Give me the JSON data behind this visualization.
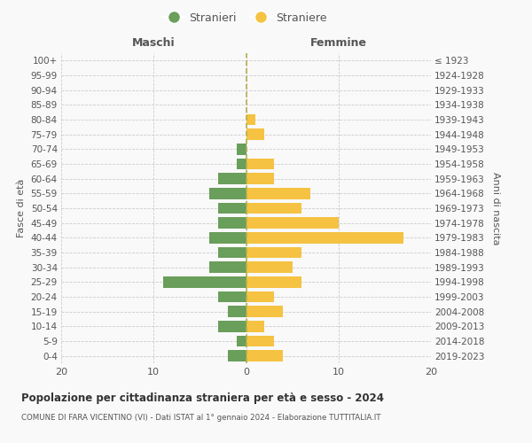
{
  "age_groups": [
    "0-4",
    "5-9",
    "10-14",
    "15-19",
    "20-24",
    "25-29",
    "30-34",
    "35-39",
    "40-44",
    "45-49",
    "50-54",
    "55-59",
    "60-64",
    "65-69",
    "70-74",
    "75-79",
    "80-84",
    "85-89",
    "90-94",
    "95-99",
    "100+"
  ],
  "birth_years": [
    "2019-2023",
    "2014-2018",
    "2009-2013",
    "2004-2008",
    "1999-2003",
    "1994-1998",
    "1989-1993",
    "1984-1988",
    "1979-1983",
    "1974-1978",
    "1969-1973",
    "1964-1968",
    "1959-1963",
    "1954-1958",
    "1949-1953",
    "1944-1948",
    "1939-1943",
    "1934-1938",
    "1929-1933",
    "1924-1928",
    "≤ 1923"
  ],
  "males": [
    2,
    1,
    3,
    2,
    3,
    9,
    4,
    3,
    4,
    3,
    3,
    4,
    3,
    1,
    1,
    0,
    0,
    0,
    0,
    0,
    0
  ],
  "females": [
    4,
    3,
    2,
    4,
    3,
    6,
    5,
    6,
    17,
    10,
    6,
    7,
    3,
    3,
    0,
    2,
    1,
    0,
    0,
    0,
    0
  ],
  "male_color": "#6a9e5b",
  "female_color": "#f5c242",
  "background_color": "#f9f9f9",
  "grid_color": "#cccccc",
  "title": "Popolazione per cittadinanza straniera per età e sesso - 2024",
  "subtitle": "COMUNE DI FARA VICENTINO (VI) - Dati ISTAT al 1° gennaio 2024 - Elaborazione TUTTITALIA.IT",
  "xlabel_left": "Maschi",
  "xlabel_right": "Femmine",
  "ylabel_left": "Fasce di età",
  "ylabel_right": "Anni di nascita",
  "legend_male": "Stranieri",
  "legend_female": "Straniere",
  "xlim": 20
}
